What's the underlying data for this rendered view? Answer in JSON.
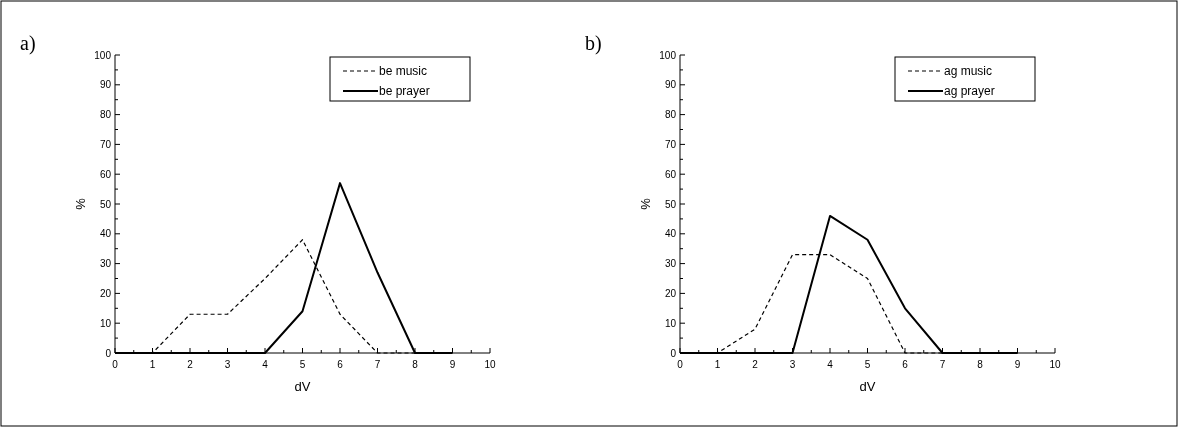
{
  "chart_data": [
    {
      "type": "line",
      "title": "a)",
      "xlabel": "dV",
      "ylabel": "%",
      "x": [
        0,
        1,
        2,
        3,
        4,
        5,
        6,
        7,
        8,
        9
      ],
      "series": [
        {
          "name": "be music",
          "color": "#000000",
          "line_style": "dashed",
          "values": [
            0,
            0,
            13,
            13,
            25,
            38,
            13,
            0,
            0,
            0
          ]
        },
        {
          "name": "be prayer",
          "color": "#000000",
          "line_style": "solid",
          "values": [
            0,
            0,
            0,
            0,
            0,
            14,
            57,
            27,
            0,
            0
          ]
        }
      ],
      "xlim": [
        0,
        10
      ],
      "xticks": [
        0,
        {
          "value": 0.5,
          "label": null
        },
        1,
        {
          "value": 1.5,
          "label": null
        },
        2,
        {
          "value": 2.5,
          "label": null
        },
        3,
        {
          "value": 3.5,
          "label": null
        },
        4,
        {
          "value": 4.5,
          "label": null
        },
        5,
        {
          "value": 5.5,
          "label": null
        },
        6,
        {
          "value": 6.5,
          "label": null
        },
        7,
        {
          "value": 7.5,
          "label": null
        },
        8,
        {
          "value": 8.5,
          "label": null
        },
        9,
        {
          "value": 9.5,
          "label": null
        },
        10
      ],
      "ylim": [
        0,
        100
      ],
      "yticks": [
        0,
        {
          "value": 5,
          "label": null
        },
        10,
        {
          "value": 15,
          "label": null
        },
        20,
        {
          "value": 25,
          "label": null
        },
        30,
        {
          "value": 35,
          "label": null
        },
        40,
        {
          "value": 45,
          "label": null
        },
        50,
        {
          "value": 55,
          "label": null
        },
        60,
        {
          "value": 65,
          "label": null
        },
        70,
        {
          "value": 75,
          "label": null
        },
        80,
        {
          "value": 85,
          "label": null
        },
        90,
        {
          "value": 95,
          "label": null
        },
        100
      ],
      "legend": "top right",
      "grid": false,
      "marker": "none"
    },
    {
      "type": "line",
      "title": "b)",
      "xlabel": "dV",
      "ylabel": "%",
      "x": [
        0,
        1,
        2,
        3,
        4,
        5,
        6,
        7,
        8,
        9
      ],
      "series": [
        {
          "name": "ag music",
          "color": "#000000",
          "line_style": "dashed",
          "values": [
            0,
            0,
            8,
            33,
            33,
            25,
            0,
            0,
            0,
            0
          ]
        },
        {
          "name": "ag prayer",
          "color": "#000000",
          "line_style": "solid",
          "values": [
            0,
            0,
            0,
            0,
            46,
            38,
            15,
            0,
            0,
            0
          ]
        }
      ],
      "xlim": [
        0,
        10
      ],
      "xticks": [
        0,
        {
          "value": 0.5,
          "label": null
        },
        1,
        {
          "value": 1.5,
          "label": null
        },
        2,
        {
          "value": 2.5,
          "label": null
        },
        3,
        {
          "value": 3.5,
          "label": null
        },
        4,
        {
          "value": 4.5,
          "label": null
        },
        5,
        {
          "value": 5.5,
          "label": null
        },
        6,
        {
          "value": 6.5,
          "label": null
        },
        7,
        {
          "value": 7.5,
          "label": null
        },
        8,
        {
          "value": 8.5,
          "label": null
        },
        9,
        {
          "value": 9.5,
          "label": null
        },
        10
      ],
      "ylim": [
        0,
        100
      ],
      "yticks": [
        0,
        {
          "value": 5,
          "label": null
        },
        10,
        {
          "value": 15,
          "label": null
        },
        20,
        {
          "value": 25,
          "label": null
        },
        30,
        {
          "value": 35,
          "label": null
        },
        40,
        {
          "value": 45,
          "label": null
        },
        50,
        {
          "value": 55,
          "label": null
        },
        60,
        {
          "value": 65,
          "label": null
        },
        70,
        {
          "value": 75,
          "label": null
        },
        80,
        {
          "value": 85,
          "label": null
        },
        90,
        {
          "value": 95,
          "label": null
        },
        100
      ],
      "legend": "top right",
      "grid": false,
      "marker": "none"
    }
  ]
}
